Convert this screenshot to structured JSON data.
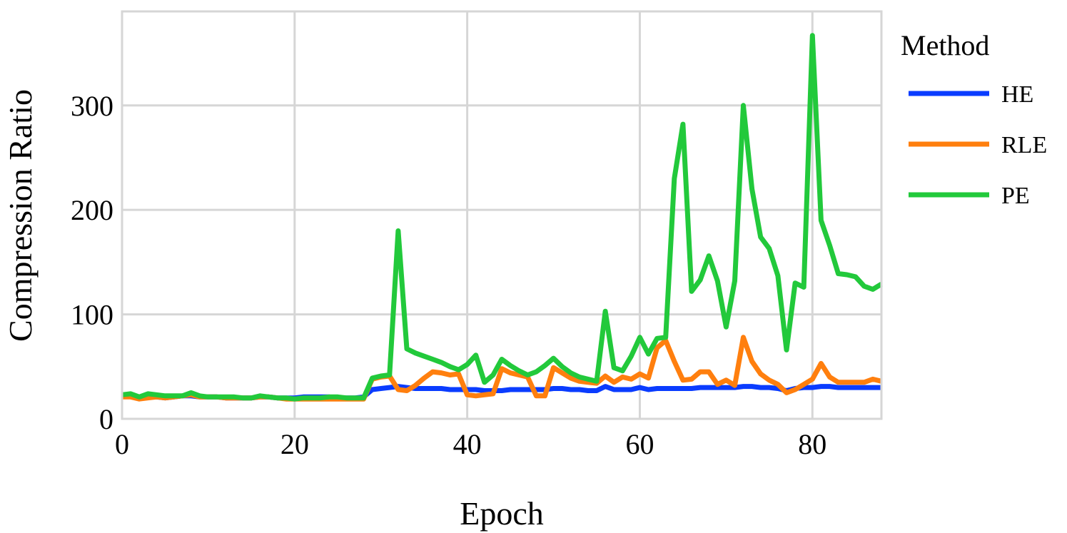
{
  "chart_data": {
    "type": "line",
    "title": "",
    "xlabel": "Epoch",
    "ylabel": "Compression Ratio",
    "xlim": [
      0,
      88
    ],
    "ylim": [
      0,
      390
    ],
    "xticks": [
      0,
      20,
      40,
      60,
      80
    ],
    "yticks": [
      0,
      100,
      200,
      300
    ],
    "xtick_labels": [
      "0",
      "20",
      "40",
      "60",
      "80"
    ],
    "ytick_labels": [
      "0",
      "100",
      "200",
      "300"
    ],
    "grid": true,
    "legend": {
      "title": "Method",
      "position": "outside-right"
    },
    "x": [
      0,
      1,
      2,
      3,
      4,
      5,
      6,
      7,
      8,
      9,
      10,
      11,
      12,
      13,
      14,
      15,
      16,
      17,
      18,
      19,
      20,
      21,
      22,
      23,
      24,
      25,
      26,
      27,
      28,
      29,
      30,
      31,
      32,
      33,
      34,
      35,
      36,
      37,
      38,
      39,
      40,
      41,
      42,
      43,
      44,
      45,
      46,
      47,
      48,
      49,
      50,
      51,
      52,
      53,
      54,
      55,
      56,
      57,
      58,
      59,
      60,
      61,
      62,
      63,
      64,
      65,
      66,
      67,
      68,
      69,
      70,
      71,
      72,
      73,
      74,
      75,
      76,
      77,
      78,
      79,
      80,
      81,
      82,
      83,
      84,
      85,
      86,
      87,
      88
    ],
    "series": [
      {
        "name": "HE",
        "color": "#0a3cff",
        "values": [
          23,
          23,
          20,
          22,
          21,
          20,
          21,
          22,
          22,
          21,
          21,
          21,
          20,
          20,
          20,
          20,
          21,
          21,
          20,
          20,
          20,
          21,
          21,
          21,
          21,
          20,
          20,
          20,
          21,
          28,
          29,
          30,
          31,
          30,
          29,
          29,
          29,
          29,
          28,
          28,
          28,
          28,
          27,
          27,
          27,
          28,
          28,
          28,
          28,
          28,
          29,
          29,
          28,
          28,
          27,
          27,
          31,
          28,
          28,
          28,
          30,
          28,
          29,
          29,
          29,
          29,
          29,
          30,
          30,
          30,
          30,
          30,
          31,
          31,
          30,
          30,
          29,
          27,
          29,
          30,
          30,
          31,
          31,
          30,
          30,
          30,
          30,
          30,
          30
        ]
      },
      {
        "name": "RLE",
        "color": "#ff7f0e",
        "values": [
          21,
          21,
          19,
          20,
          21,
          20,
          21,
          22,
          23,
          21,
          21,
          21,
          20,
          20,
          20,
          20,
          21,
          21,
          20,
          19,
          19,
          19,
          19,
          19,
          19,
          19,
          19,
          19,
          19,
          38,
          40,
          41,
          28,
          27,
          32,
          39,
          45,
          44,
          42,
          43,
          23,
          22,
          23,
          24,
          48,
          44,
          42,
          40,
          22,
          22,
          49,
          44,
          39,
          36,
          35,
          34,
          41,
          35,
          40,
          38,
          43,
          39,
          68,
          75,
          55,
          37,
          38,
          45,
          45,
          33,
          37,
          32,
          78,
          55,
          43,
          37,
          33,
          25,
          28,
          33,
          38,
          53,
          40,
          35,
          35,
          35,
          35,
          38,
          36
        ]
      },
      {
        "name": "PE",
        "color": "#22c93b",
        "values": [
          23,
          24,
          21,
          24,
          23,
          22,
          22,
          22,
          25,
          22,
          21,
          21,
          21,
          21,
          20,
          20,
          22,
          21,
          20,
          20,
          19,
          20,
          20,
          20,
          21,
          21,
          20,
          20,
          20,
          39,
          41,
          42,
          180,
          67,
          63,
          60,
          57,
          54,
          50,
          47,
          52,
          61,
          35,
          42,
          57,
          51,
          46,
          42,
          45,
          51,
          58,
          50,
          44,
          40,
          38,
          36,
          103,
          49,
          46,
          60,
          78,
          62,
          77,
          78,
          230,
          282,
          122,
          133,
          156,
          132,
          88,
          132,
          300,
          220,
          174,
          163,
          137,
          66,
          130,
          126,
          367,
          190,
          166,
          139,
          138,
          136,
          127,
          124,
          129
        ]
      }
    ]
  }
}
